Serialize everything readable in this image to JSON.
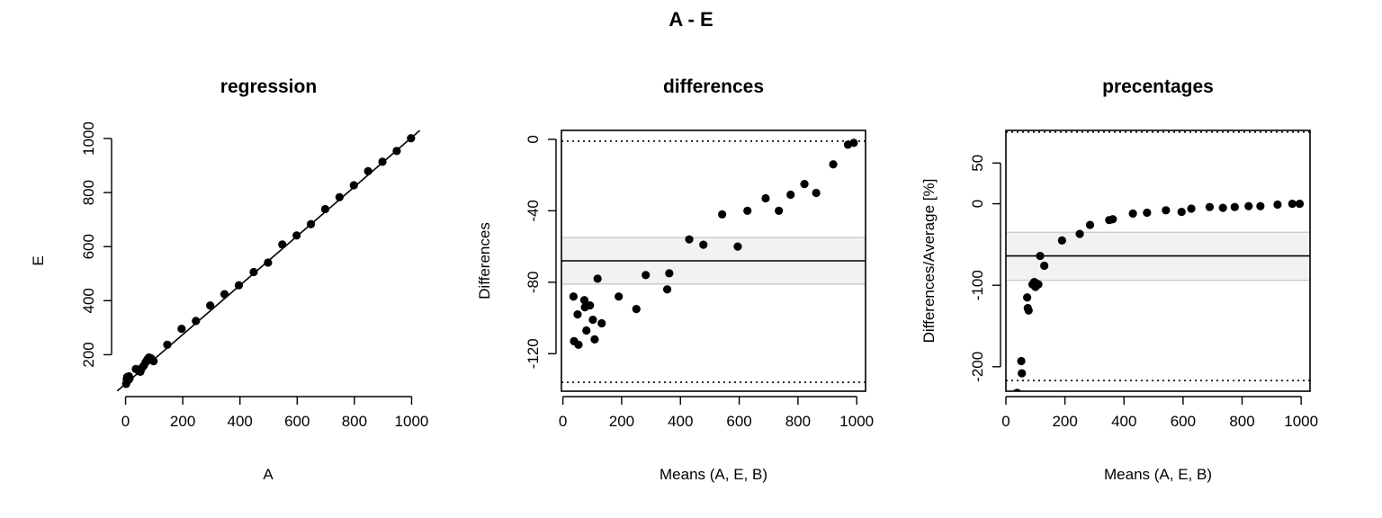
{
  "title": "A - E",
  "chart_data": [
    {
      "type": "scatter",
      "title": "regression",
      "xlabel": "A",
      "ylabel": "E",
      "xlim": [
        -30,
        1030
      ],
      "ylim": [
        65,
        1030
      ],
      "xticks": [
        0,
        200,
        400,
        600,
        800,
        1000
      ],
      "yticks": [
        200,
        400,
        600,
        800,
        1000
      ],
      "points": [
        [
          2,
          92
        ],
        [
          4,
          110
        ],
        [
          6,
          118
        ],
        [
          8,
          114
        ],
        [
          10,
          106
        ],
        [
          12,
          120
        ],
        [
          14,
          112
        ],
        [
          36,
          147
        ],
        [
          46,
          140
        ],
        [
          52,
          137
        ],
        [
          58,
          152
        ],
        [
          64,
          160
        ],
        [
          70,
          172
        ],
        [
          76,
          182
        ],
        [
          82,
          190
        ],
        [
          90,
          186
        ],
        [
          98,
          176
        ],
        [
          146,
          237
        ],
        [
          196,
          296
        ],
        [
          246,
          325
        ],
        [
          296,
          382
        ],
        [
          346,
          424
        ],
        [
          396,
          457
        ],
        [
          448,
          506
        ],
        [
          498,
          541
        ],
        [
          548,
          608
        ],
        [
          598,
          641
        ],
        [
          648,
          683
        ],
        [
          698,
          739
        ],
        [
          748,
          783
        ],
        [
          798,
          827
        ],
        [
          848,
          879
        ],
        [
          898,
          914
        ],
        [
          948,
          954
        ],
        [
          998,
          1001
        ]
      ],
      "reference_line": {
        "from": [
          -30,
          65
        ],
        "to": [
          1030,
          1031
        ]
      }
    },
    {
      "type": "scatter",
      "title": "differences",
      "xlabel": "Means (A, E, B)",
      "ylabel": "Differences",
      "xlim": [
        -5,
        1030
      ],
      "ylim": [
        -141,
        5
      ],
      "xticks": [
        0,
        200,
        400,
        600,
        800,
        1000
      ],
      "yticks": [
        0,
        -40,
        -80,
        -120
      ],
      "mean_line": -68,
      "band": [
        -81,
        -55
      ],
      "limits_of_agreement": [
        -1,
        -136
      ],
      "points": [
        [
          36,
          -88
        ],
        [
          38,
          -113
        ],
        [
          50,
          -98
        ],
        [
          53,
          -115
        ],
        [
          73,
          -90
        ],
        [
          75,
          -94
        ],
        [
          80,
          -107
        ],
        [
          92,
          -93
        ],
        [
          102,
          -101
        ],
        [
          108,
          -112
        ],
        [
          118,
          -78
        ],
        [
          132,
          -103
        ],
        [
          190,
          -88
        ],
        [
          250,
          -95
        ],
        [
          282,
          -76
        ],
        [
          355,
          -84
        ],
        [
          362,
          -75
        ],
        [
          430,
          -56
        ],
        [
          478,
          -59
        ],
        [
          542,
          -42
        ],
        [
          595,
          -60
        ],
        [
          628,
          -40
        ],
        [
          690,
          -33
        ],
        [
          735,
          -40
        ],
        [
          775,
          -31
        ],
        [
          822,
          -25
        ],
        [
          862,
          -30
        ],
        [
          920,
          -14
        ],
        [
          970,
          -3
        ],
        [
          990,
          -2
        ]
      ]
    },
    {
      "type": "scatter",
      "title": "precentages",
      "xlabel": "Means (A, E, B)",
      "ylabel": "Differences/Average [%]",
      "xlim": [
        0,
        1030
      ],
      "ylim": [
        -230,
        90
      ],
      "xticks": [
        0,
        200,
        400,
        600,
        800,
        1000
      ],
      "yticks": [
        50,
        0,
        -100,
        -200
      ],
      "mean_line": -64,
      "band": [
        -94,
        -35
      ],
      "limits_of_agreement": [
        88,
        -217
      ],
      "points": [
        [
          38,
          -232
        ],
        [
          52,
          -193
        ],
        [
          54,
          -208
        ],
        [
          72,
          -115
        ],
        [
          74,
          -128
        ],
        [
          77,
          -131
        ],
        [
          90,
          -99
        ],
        [
          96,
          -96
        ],
        [
          100,
          -102
        ],
        [
          105,
          -98
        ],
        [
          110,
          -99
        ],
        [
          116,
          -64
        ],
        [
          130,
          -76
        ],
        [
          190,
          -45
        ],
        [
          250,
          -37
        ],
        [
          285,
          -26
        ],
        [
          350,
          -20
        ],
        [
          362,
          -19
        ],
        [
          430,
          -12
        ],
        [
          478,
          -11
        ],
        [
          542,
          -8
        ],
        [
          595,
          -10
        ],
        [
          628,
          -6
        ],
        [
          690,
          -4
        ],
        [
          735,
          -5
        ],
        [
          775,
          -4
        ],
        [
          822,
          -3
        ],
        [
          862,
          -3
        ],
        [
          920,
          -1
        ],
        [
          970,
          0
        ],
        [
          995,
          0
        ]
      ]
    }
  ]
}
